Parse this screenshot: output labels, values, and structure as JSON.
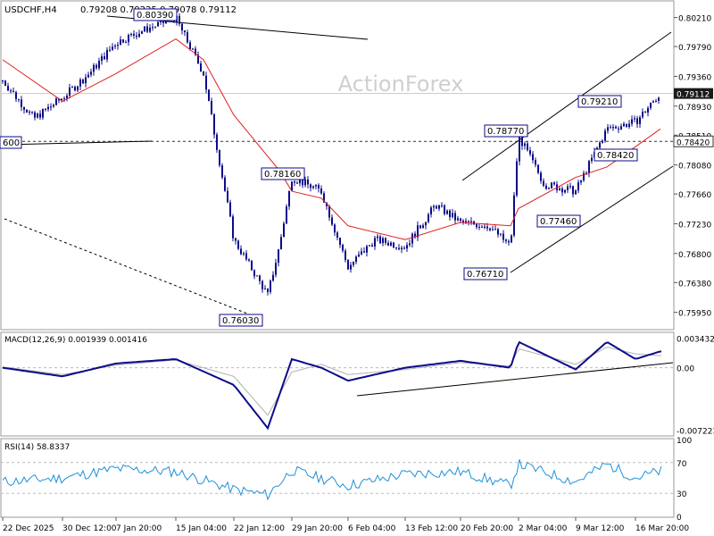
{
  "header": {
    "symbol": "USDCHF,H4",
    "ohlc": "0.79208 0.79225 0.79078 0.79112",
    "watermark": "ActionForex"
  },
  "colors": {
    "candle": "#0b0b8a",
    "ma": "#e02020",
    "macd_line": "#0b0b8a",
    "macd_signal": "#b0b0b0",
    "rsi": "#1e90d8",
    "price_tag_bg": "#1a1a1a",
    "label_border": "#0b0b8a"
  },
  "chart_data": [
    {
      "type": "candlestick",
      "title": "USDCHF,H4",
      "ylim": [
        0.757,
        0.8045
      ],
      "y_ticks": [
        "0.80210",
        "0.79790",
        "0.79360",
        "0.78930",
        "0.78510",
        "0.78080",
        "0.77660",
        "0.77230",
        "0.76800",
        "0.76380",
        "0.75950"
      ],
      "x_ticks": [
        "22 Dec 2025",
        "30 Dec 12:00",
        "7 Jan 20:00",
        "15 Jan 04:00",
        "22 Jan 12:00",
        "29 Jan 20:00",
        "6 Feb 04:00",
        "13 Feb 12:00",
        "20 Feb 20:00",
        "2 Mar 04:00",
        "9 Mar 12:00",
        "16 Mar 20:00"
      ],
      "current_price": "0.79112",
      "horizontal_level": "0.78420",
      "series": [
        {
          "name": "Close",
          "x": [
            "22 Dec 2025",
            "26 Dec 2025",
            "30 Dec 12:00",
            "3 Jan 2026",
            "7 Jan 20:00",
            "11 Jan 2026",
            "15 Jan 04:00",
            "18 Jan 2026",
            "22 Jan 12:00",
            "24 Jan 2026",
            "26 Jan 2026",
            "29 Jan 20:00",
            "2 Feb 2026",
            "6 Feb 04:00",
            "9 Feb 2026",
            "13 Feb 12:00",
            "17 Feb 2026",
            "20 Feb 20:00",
            "24 Feb 2026",
            "27 Feb 2026",
            "2 Mar 04:00",
            "5 Mar 2026",
            "9 Mar 12:00",
            "12 Mar 2026",
            "16 Mar 20:00",
            "18 Mar 2026"
          ],
          "values": [
            0.793,
            0.7875,
            0.7905,
            0.794,
            0.7985,
            0.8005,
            0.802,
            0.794,
            0.77,
            0.762,
            0.769,
            0.779,
            0.777,
            0.766,
            0.77,
            0.769,
            0.775,
            0.7725,
            0.772,
            0.769,
            0.785,
            0.778,
            0.777,
            0.786,
            0.787,
            0.7911
          ]
        },
        {
          "name": "MA",
          "x": [
            "22 Dec 2025",
            "30 Dec 12:00",
            "7 Jan 20:00",
            "15 Jan 04:00",
            "18 Jan 2026",
            "22 Jan 12:00",
            "26 Jan 2026",
            "29 Jan 20:00",
            "2 Feb 2026",
            "6 Feb 04:00",
            "13 Feb 12:00",
            "20 Feb 20:00",
            "27 Feb 2026",
            "2 Mar 04:00",
            "9 Mar 12:00",
            "12 Mar 2026",
            "18 Mar 2026"
          ],
          "values": [
            0.796,
            0.79,
            0.794,
            0.799,
            0.796,
            0.788,
            0.78,
            0.777,
            0.776,
            0.772,
            0.77,
            0.7725,
            0.772,
            0.7745,
            0.779,
            0.7805,
            0.786
          ]
        }
      ],
      "annotations": [
        "0.80390",
        "0.78160",
        "0.76030",
        "0.78770",
        "0.79210",
        "0.78420",
        "0.77460",
        "0.76710",
        "600"
      ]
    },
    {
      "type": "line",
      "title": "MACD(12,26,9) 0.001939 0.001416",
      "y_ticks": [
        "0.003432",
        "0.00",
        "-0.007223"
      ],
      "series": [
        {
          "name": "MACD",
          "x": [
            "22 Dec 2025",
            "30 Dec 12:00",
            "7 Jan 20:00",
            "15 Jan 04:00",
            "22 Jan 12:00",
            "24 Jan 2026",
            "29 Jan 20:00",
            "2 Feb 2026",
            "6 Feb 04:00",
            "13 Feb 12:00",
            "20 Feb 20:00",
            "27 Feb 2026",
            "2 Mar 04:00",
            "9 Mar 12:00",
            "12 Mar 2026",
            "16 Mar 20:00",
            "18 Mar 2026"
          ],
          "values": [
            0.0,
            -0.001,
            0.0005,
            0.001,
            -0.002,
            -0.007,
            0.001,
            0.0,
            -0.0015,
            0.0,
            0.0008,
            0.0,
            0.003,
            -0.0002,
            0.003,
            0.001,
            0.0019
          ]
        },
        {
          "name": "Signal",
          "x": [
            "22 Dec 2025",
            "30 Dec 12:00",
            "7 Jan 20:00",
            "15 Jan 04:00",
            "22 Jan 12:00",
            "24 Jan 2026",
            "29 Jan 20:00",
            "2 Feb 2026",
            "6 Feb 04:00",
            "13 Feb 12:00",
            "20 Feb 20:00",
            "27 Feb 2026",
            "2 Mar 04:00",
            "9 Mar 12:00",
            "12 Mar 2026",
            "16 Mar 20:00",
            "18 Mar 2026"
          ],
          "values": [
            0.0001,
            -0.0008,
            0.0003,
            0.0009,
            -0.001,
            -0.0055,
            -0.0005,
            0.0004,
            -0.0008,
            -0.0002,
            0.0006,
            0.0002,
            0.0022,
            0.0004,
            0.0024,
            0.0016,
            0.0014
          ]
        }
      ]
    },
    {
      "type": "line",
      "title": "RSI(14) 58.8337",
      "y_ticks": [
        "100",
        "70",
        "30",
        "0"
      ],
      "ylim": [
        0,
        100
      ],
      "series": [
        {
          "name": "RSI",
          "x": [
            "22 Dec 2025",
            "30 Dec 12:00",
            "7 Jan 20:00",
            "15 Jan 04:00",
            "22 Jan 12:00",
            "24 Jan 2026",
            "29 Jan 20:00",
            "6 Feb 04:00",
            "13 Feb 12:00",
            "20 Feb 20:00",
            "27 Feb 2026",
            "2 Mar 04:00",
            "9 Mar 12:00",
            "12 Mar 2026",
            "16 Mar 20:00",
            "18 Mar 2026"
          ],
          "values": [
            45,
            50,
            62,
            58,
            35,
            28,
            60,
            40,
            55,
            58,
            40,
            68,
            45,
            68,
            50,
            58.8
          ]
        }
      ]
    }
  ]
}
